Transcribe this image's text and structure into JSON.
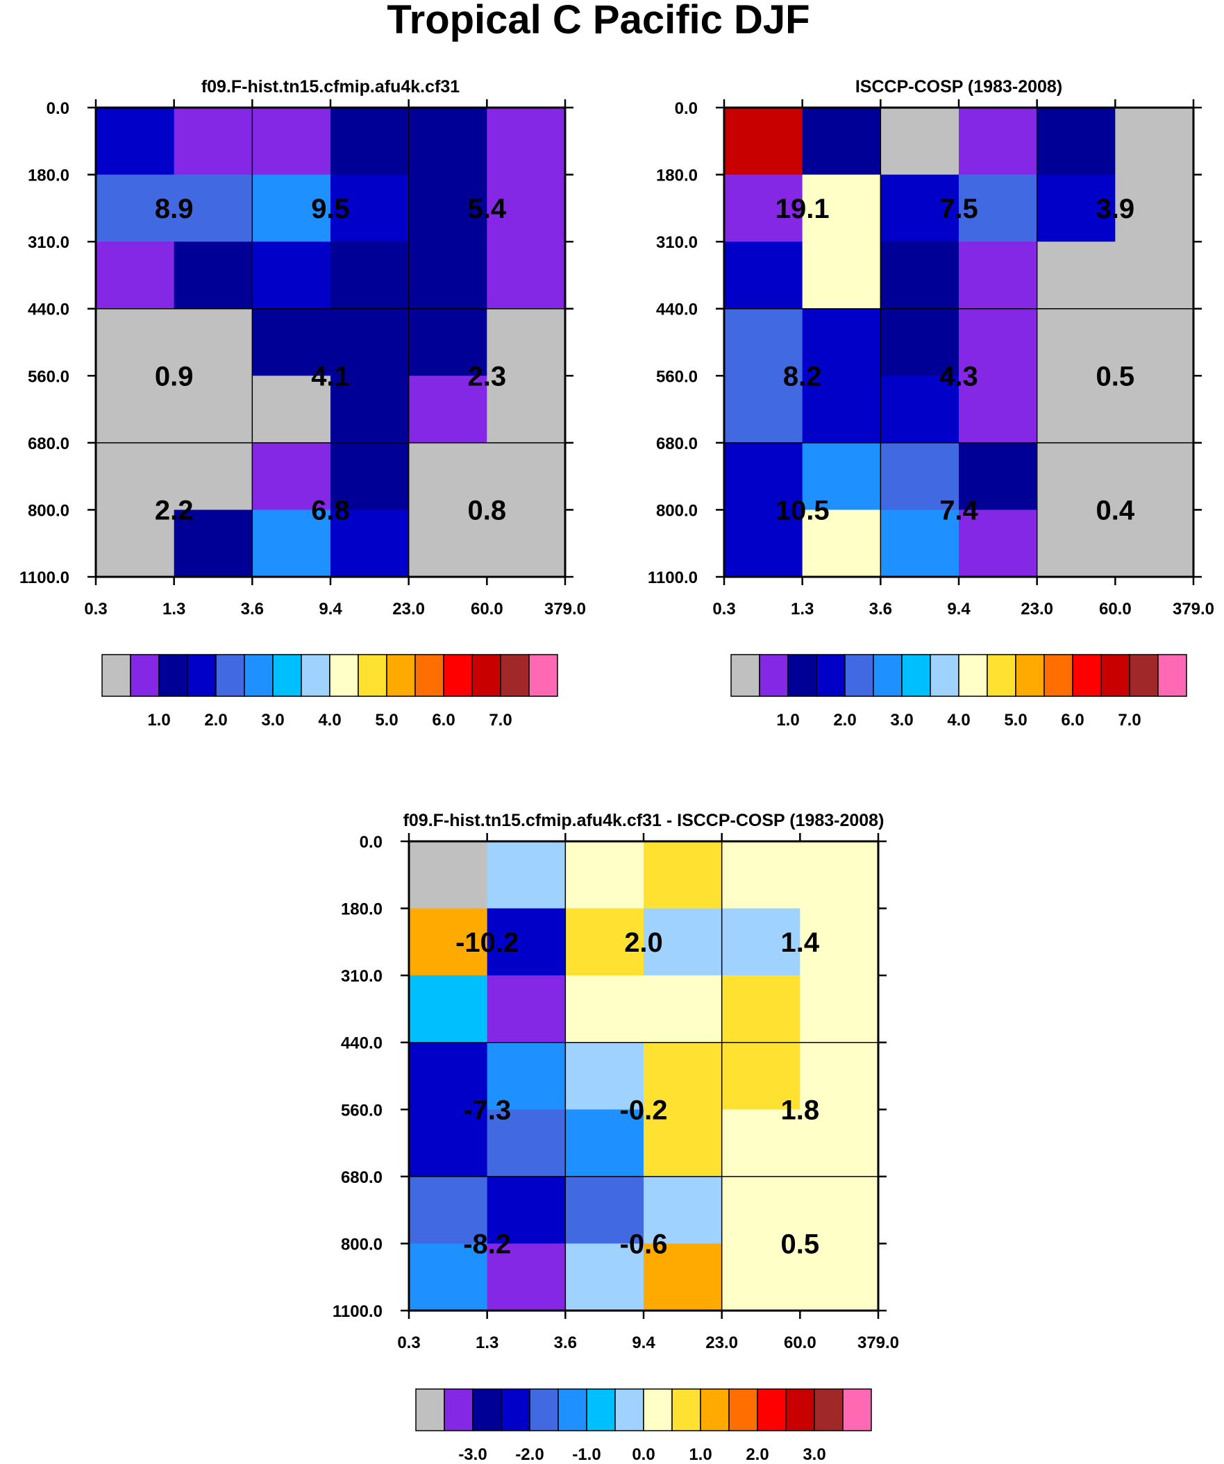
{
  "figure_title": "Tropical C Pacific DJF",
  "palette": {
    "colors": [
      "#C0C0C0",
      "#8428E6",
      "#000096",
      "#0000C8",
      "#4169E1",
      "#1E90FF",
      "#00BFFF",
      "#A0D2FF",
      "#FFFFC8",
      "#FFE132",
      "#FFAA00",
      "#FF6E00",
      "#FF0000",
      "#C80000",
      "#A02828",
      "#FF69B4"
    ]
  },
  "chart_data": [
    {
      "type": "heatmap",
      "title": "f09.F-hist.tn15.cfmip.afu4k.cf31",
      "xlabel": "",
      "ylabel": "",
      "x_ticks": [
        "0.3",
        "1.3",
        "3.6",
        "9.4",
        "23.0",
        "60.0",
        "379.0"
      ],
      "y_ticks": [
        "0.0",
        "180.0",
        "310.0",
        "440.0",
        "560.0",
        "680.0",
        "800.0",
        "1100.0"
      ],
      "cell_color_index": [
        [
          3,
          1,
          1,
          2,
          2,
          1
        ],
        [
          4,
          4,
          5,
          3,
          2,
          1
        ],
        [
          1,
          2,
          3,
          2,
          2,
          1
        ],
        [
          0,
          0,
          2,
          2,
          2,
          0
        ],
        [
          0,
          0,
          0,
          2,
          1,
          0
        ],
        [
          0,
          0,
          1,
          2,
          0,
          0
        ],
        [
          0,
          2,
          5,
          3,
          0,
          0
        ]
      ],
      "group_labels": [
        [
          "8.9",
          "9.5",
          "5.4"
        ],
        [
          "0.9",
          "4.1",
          "2.3"
        ],
        [
          "2.2",
          "6.8",
          "0.8"
        ]
      ],
      "colorbar": {
        "labels": [
          "1.0",
          "2.0",
          "3.0",
          "4.0",
          "5.0",
          "6.0",
          "7.0"
        ]
      }
    },
    {
      "type": "heatmap",
      "title": "ISCCP-COSP (1983-2008)",
      "xlabel": "",
      "ylabel": "",
      "x_ticks": [
        "0.3",
        "1.3",
        "3.6",
        "9.4",
        "23.0",
        "60.0",
        "379.0"
      ],
      "y_ticks": [
        "0.0",
        "180.0",
        "310.0",
        "440.0",
        "560.0",
        "680.0",
        "800.0",
        "1100.0"
      ],
      "cell_color_index": [
        [
          13,
          2,
          0,
          1,
          2,
          0
        ],
        [
          1,
          8,
          3,
          4,
          3,
          0
        ],
        [
          3,
          8,
          2,
          1,
          0,
          0
        ],
        [
          4,
          3,
          2,
          1,
          0,
          0
        ],
        [
          4,
          3,
          3,
          1,
          0,
          0
        ],
        [
          3,
          5,
          4,
          2,
          0,
          0
        ],
        [
          3,
          8,
          5,
          1,
          0,
          0
        ]
      ],
      "group_labels": [
        [
          "19.1",
          "7.5",
          "3.9"
        ],
        [
          "8.2",
          "4.3",
          "0.5"
        ],
        [
          "10.5",
          "7.4",
          "0.4"
        ]
      ],
      "colorbar": {
        "labels": [
          "1.0",
          "2.0",
          "3.0",
          "4.0",
          "5.0",
          "6.0",
          "7.0"
        ]
      }
    },
    {
      "type": "heatmap",
      "title": "f09.F-hist.tn15.cfmip.afu4k.cf31 - ISCCP-COSP (1983-2008)",
      "xlabel": "",
      "ylabel": "",
      "x_ticks": [
        "0.3",
        "1.3",
        "3.6",
        "9.4",
        "23.0",
        "60.0",
        "379.0"
      ],
      "y_ticks": [
        "0.0",
        "180.0",
        "310.0",
        "440.0",
        "560.0",
        "680.0",
        "800.0",
        "1100.0"
      ],
      "cell_color_index": [
        [
          0,
          7,
          8,
          9,
          8,
          8
        ],
        [
          10,
          3,
          9,
          7,
          7,
          8
        ],
        [
          6,
          1,
          8,
          8,
          9,
          8
        ],
        [
          3,
          5,
          7,
          9,
          9,
          8
        ],
        [
          3,
          4,
          5,
          9,
          8,
          8
        ],
        [
          4,
          3,
          4,
          7,
          8,
          8
        ],
        [
          5,
          1,
          7,
          10,
          8,
          8
        ]
      ],
      "group_labels": [
        [
          "-10.2",
          "2.0",
          "1.4"
        ],
        [
          "-7.3",
          "-0.2",
          "1.8"
        ],
        [
          "-8.2",
          "-0.6",
          "0.5"
        ]
      ],
      "colorbar": {
        "labels": [
          "-3.0",
          "-2.0",
          "-1.0",
          "0.0",
          "1.0",
          "2.0",
          "3.0"
        ]
      }
    }
  ]
}
